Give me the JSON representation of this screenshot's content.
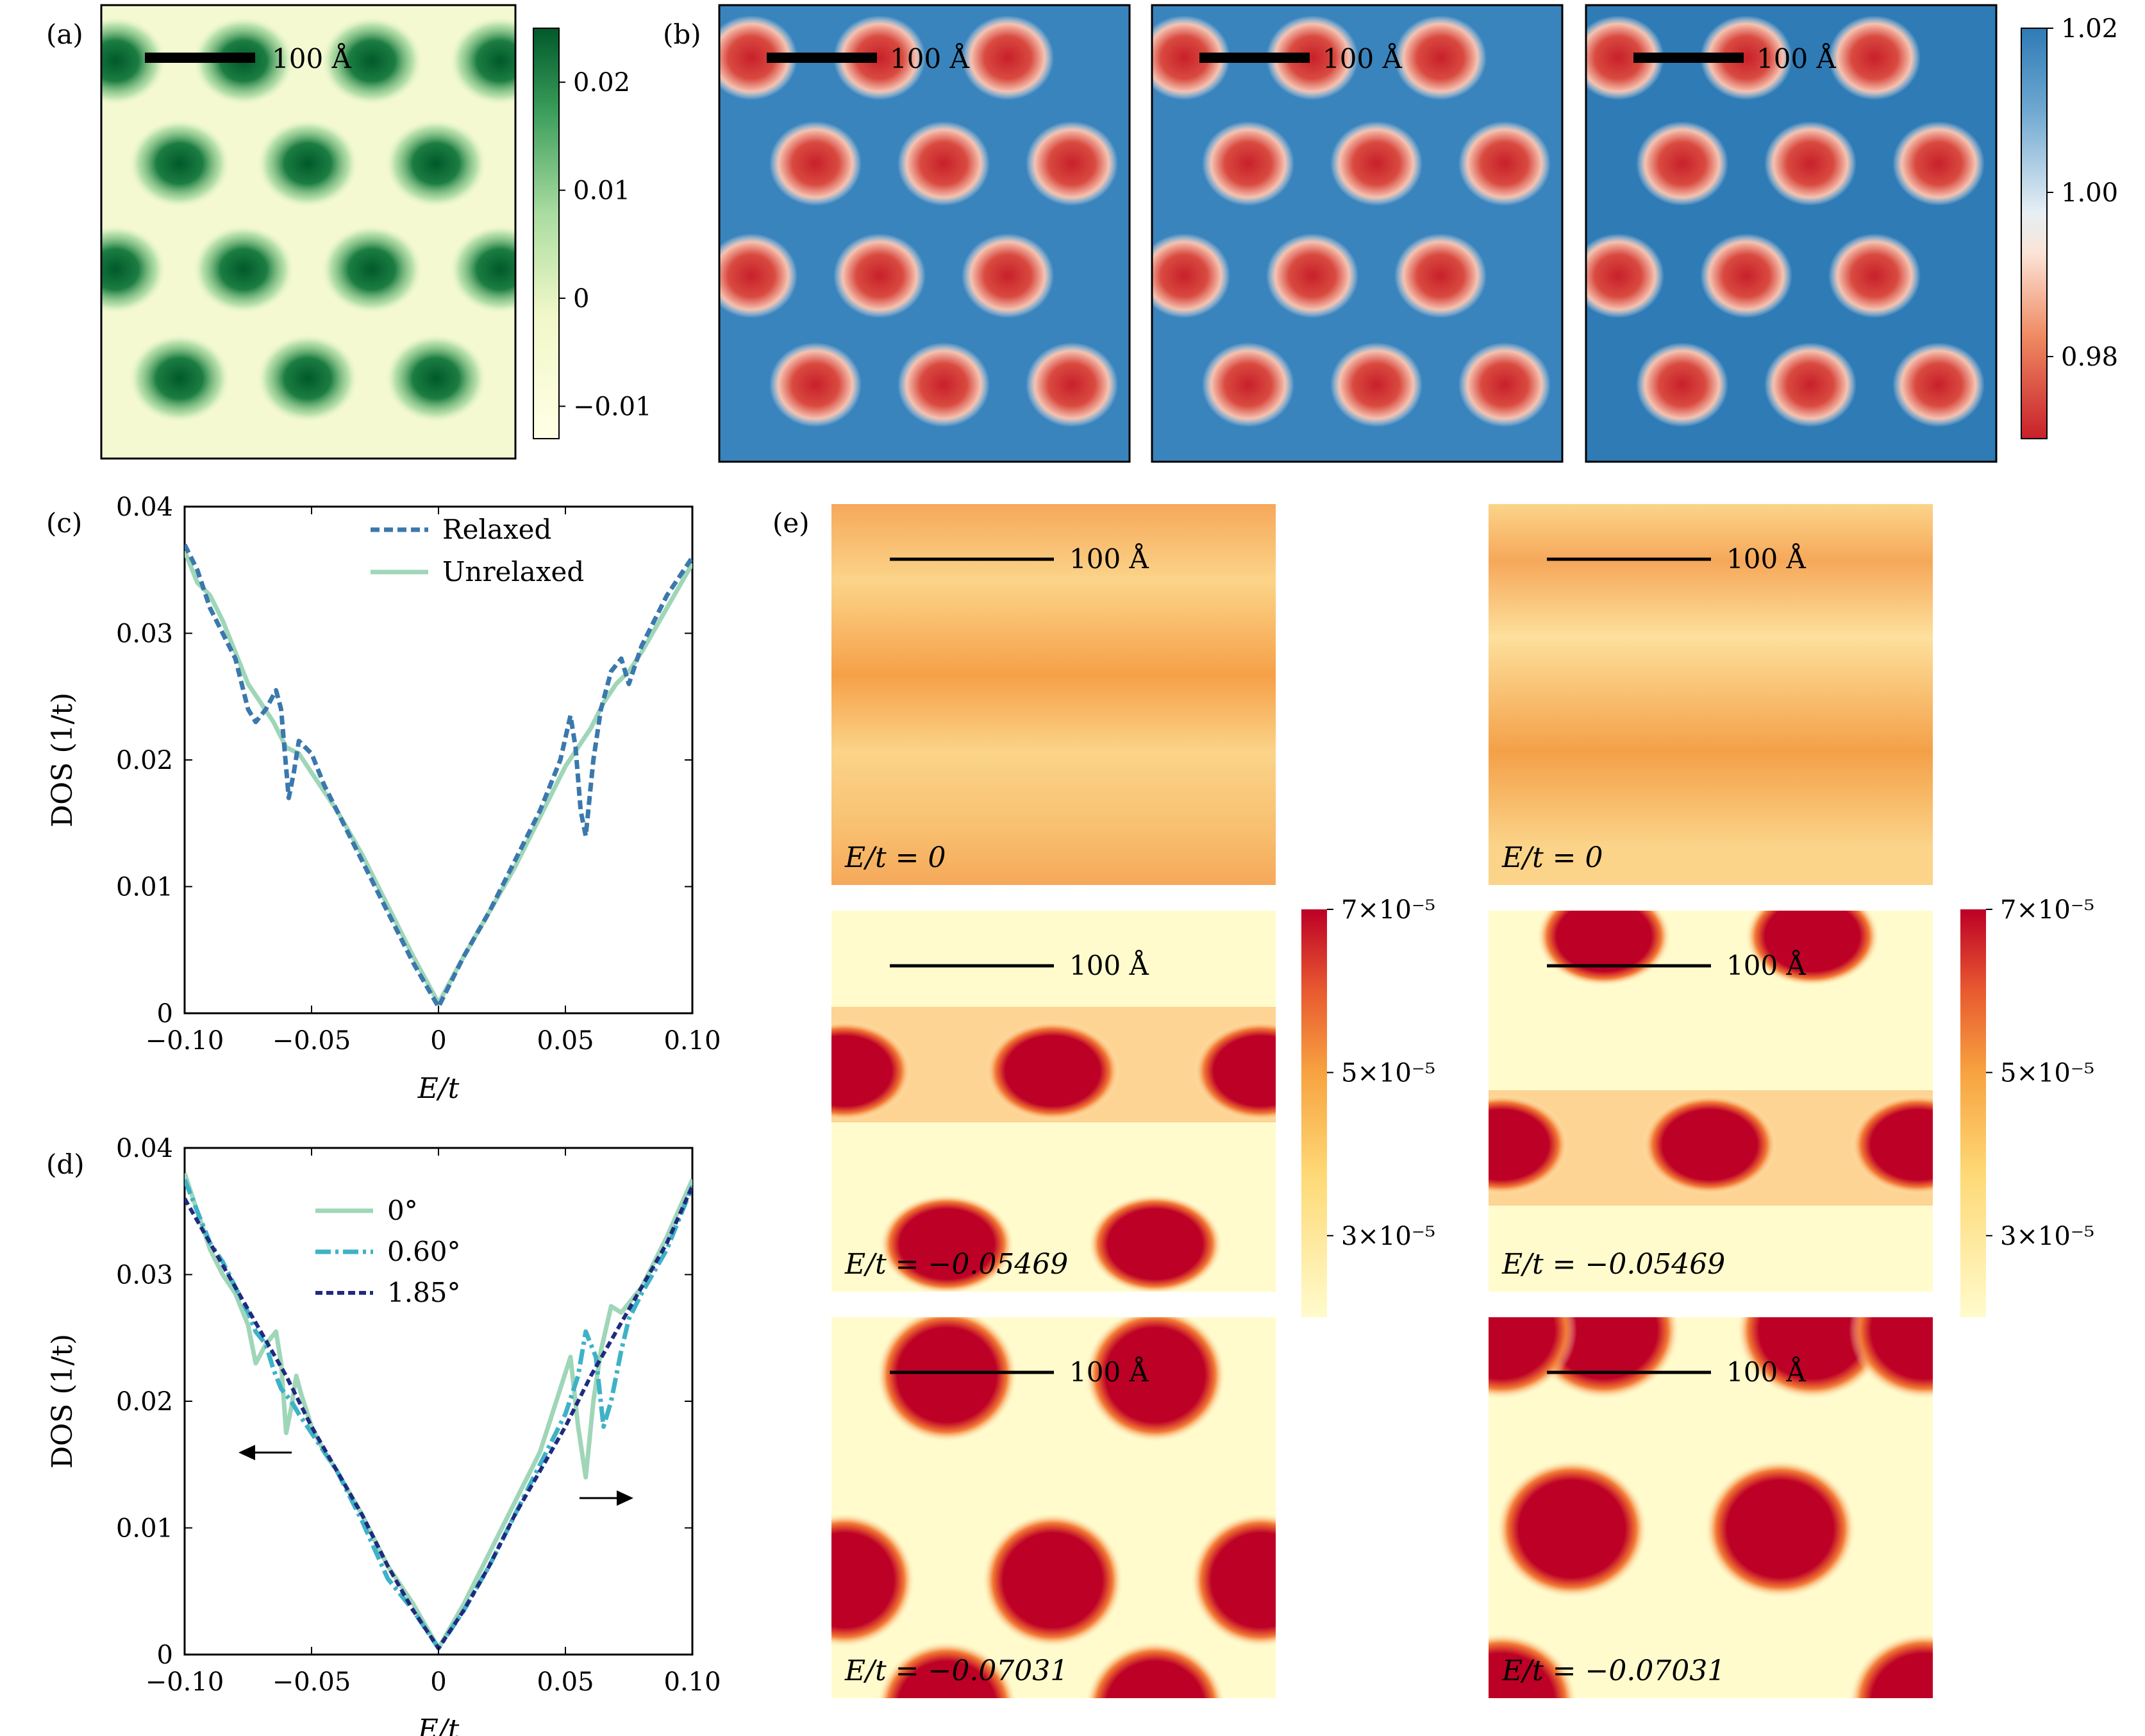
{
  "panel_labels": {
    "a": "(a)",
    "b": "(b)",
    "c": "(c)",
    "d": "(d)",
    "e": "(e)"
  },
  "scalebar_label": "100 Å",
  "colors": {
    "greens_dark": "#00592a",
    "greens_light": "#ffffe5",
    "rdbu_red": "#c8202a",
    "rdbu_white": "#f7f7f7",
    "rdbu_blue": "#2e7bb6",
    "ylorrd_pale": "#fffbcc",
    "ylorrd_orange": "#f7a340",
    "ylorrd_red": "#bd0026",
    "relaxed": "#3a78ad",
    "unrelaxed": "#9fd6b8",
    "angle_0": "#9fd6b8",
    "angle_060": "#3eb2c6",
    "angle_185": "#1f2b80"
  },
  "colorbar_a": {
    "ticks": [
      "0.02",
      "0.01",
      "0",
      "−0.01"
    ],
    "range": [
      -0.013,
      0.025
    ]
  },
  "colorbar_b": {
    "ticks": [
      "1.02",
      "1.00",
      "0.98"
    ],
    "range": [
      0.97,
      1.02
    ]
  },
  "colorbar_e": {
    "ticks": [
      "7×10⁻⁵",
      "5×10⁻⁵",
      "3×10⁻⁵"
    ],
    "range": [
      2e-05,
      7e-05
    ]
  },
  "panel_e_labels": [
    "E/t = 0",
    "E/t = −0.05469",
    "E/t = −0.07031"
  ],
  "chart_data": [
    {
      "panel": "c",
      "type": "line",
      "xlabel": "E/t",
      "ylabel": "DOS (1/t)",
      "xlim": [
        -0.1,
        0.1
      ],
      "ylim": [
        0,
        0.04
      ],
      "xticks": [
        "−0.10",
        "−0.05",
        "0",
        "0.05",
        "0.10"
      ],
      "yticks": [
        "0",
        "0.01",
        "0.02",
        "0.03",
        "0.04"
      ],
      "legend_position": "top-right",
      "series": [
        {
          "name": "Relaxed",
          "style": "dashed",
          "x": [
            -0.1,
            -0.095,
            -0.09,
            -0.085,
            -0.08,
            -0.075,
            -0.072,
            -0.068,
            -0.064,
            -0.062,
            -0.059,
            -0.057,
            -0.055,
            -0.05,
            -0.045,
            -0.04,
            -0.03,
            -0.02,
            -0.01,
            0,
            0.01,
            0.02,
            0.03,
            0.04,
            0.048,
            0.052,
            0.054,
            0.056,
            0.058,
            0.061,
            0.064,
            0.068,
            0.072,
            0.075,
            0.08,
            0.09,
            0.1
          ],
          "y": [
            0.037,
            0.035,
            0.032,
            0.03,
            0.028,
            0.024,
            0.023,
            0.024,
            0.0255,
            0.024,
            0.017,
            0.019,
            0.0215,
            0.0205,
            0.018,
            0.016,
            0.012,
            0.008,
            0.004,
            0.0005,
            0.0045,
            0.008,
            0.012,
            0.016,
            0.02,
            0.0235,
            0.021,
            0.016,
            0.014,
            0.02,
            0.024,
            0.027,
            0.028,
            0.026,
            0.029,
            0.033,
            0.036
          ]
        },
        {
          "name": "Unrelaxed",
          "style": "solid",
          "x": [
            -0.1,
            -0.095,
            -0.09,
            -0.085,
            -0.08,
            -0.075,
            -0.07,
            -0.065,
            -0.06,
            -0.055,
            -0.05,
            -0.04,
            -0.03,
            -0.02,
            -0.01,
            0,
            0.01,
            0.02,
            0.03,
            0.04,
            0.05,
            0.055,
            0.06,
            0.065,
            0.07,
            0.075,
            0.08,
            0.09,
            0.1
          ],
          "y": [
            0.0365,
            0.034,
            0.033,
            0.031,
            0.0285,
            0.026,
            0.0245,
            0.023,
            0.021,
            0.0205,
            0.019,
            0.016,
            0.0125,
            0.0085,
            0.0045,
            0.0008,
            0.0045,
            0.008,
            0.0115,
            0.0155,
            0.0195,
            0.021,
            0.0225,
            0.0245,
            0.026,
            0.027,
            0.0285,
            0.032,
            0.0355
          ]
        }
      ]
    },
    {
      "panel": "d",
      "type": "line",
      "xlabel": "E/t",
      "ylabel": "DOS (1/t)",
      "xlim": [
        -0.1,
        0.1
      ],
      "ylim": [
        0,
        0.04
      ],
      "xticks": [
        "−0.10",
        "−0.05",
        "0",
        "0.05",
        "0.10"
      ],
      "yticks": [
        "0",
        "0.01",
        "0.02",
        "0.03",
        "0.04"
      ],
      "legend_position": "top-center",
      "series": [
        {
          "name": "0°",
          "style": "solid",
          "x": [
            -0.1,
            -0.095,
            -0.09,
            -0.085,
            -0.08,
            -0.075,
            -0.072,
            -0.068,
            -0.064,
            -0.062,
            -0.06,
            -0.058,
            -0.056,
            -0.054,
            -0.05,
            -0.045,
            -0.04,
            -0.03,
            -0.02,
            -0.01,
            0,
            0.01,
            0.02,
            0.03,
            0.04,
            0.048,
            0.052,
            0.055,
            0.058,
            0.061,
            0.064,
            0.068,
            0.072,
            0.076,
            0.08,
            0.09,
            0.1
          ],
          "y": [
            0.038,
            0.035,
            0.032,
            0.03,
            0.0285,
            0.026,
            0.023,
            0.0245,
            0.0255,
            0.023,
            0.0175,
            0.0195,
            0.022,
            0.0205,
            0.018,
            0.016,
            0.0145,
            0.011,
            0.007,
            0.004,
            0.0005,
            0.004,
            0.008,
            0.012,
            0.016,
            0.021,
            0.0235,
            0.018,
            0.014,
            0.02,
            0.024,
            0.0275,
            0.027,
            0.028,
            0.029,
            0.033,
            0.0375
          ]
        },
        {
          "name": "0.60°",
          "style": "dashdot",
          "x": [
            -0.1,
            -0.095,
            -0.09,
            -0.085,
            -0.08,
            -0.075,
            -0.072,
            -0.068,
            -0.065,
            -0.062,
            -0.058,
            -0.055,
            -0.05,
            -0.04,
            -0.03,
            -0.02,
            -0.01,
            0,
            0.01,
            0.02,
            0.03,
            0.04,
            0.05,
            0.055,
            0.058,
            0.062,
            0.065,
            0.068,
            0.072,
            0.075,
            0.08,
            0.09,
            0.1
          ],
          "y": [
            0.0375,
            0.035,
            0.0325,
            0.031,
            0.029,
            0.027,
            0.0255,
            0.0245,
            0.0225,
            0.021,
            0.02,
            0.019,
            0.0175,
            0.0145,
            0.0105,
            0.006,
            0.0035,
            0.0005,
            0.0035,
            0.007,
            0.011,
            0.015,
            0.019,
            0.022,
            0.0255,
            0.0235,
            0.018,
            0.02,
            0.024,
            0.0265,
            0.0285,
            0.032,
            0.037
          ]
        },
        {
          "name": "1.85°",
          "style": "dashed",
          "x": [
            -0.1,
            -0.09,
            -0.08,
            -0.07,
            -0.06,
            -0.05,
            -0.04,
            -0.03,
            -0.02,
            -0.01,
            0,
            0.01,
            0.02,
            0.03,
            0.04,
            0.05,
            0.06,
            0.07,
            0.08,
            0.09,
            0.1
          ],
          "y": [
            0.036,
            0.0325,
            0.029,
            0.0255,
            0.022,
            0.018,
            0.0145,
            0.011,
            0.007,
            0.0035,
            0.0005,
            0.0035,
            0.007,
            0.011,
            0.0145,
            0.018,
            0.022,
            0.0255,
            0.029,
            0.0325,
            0.037
          ]
        }
      ]
    }
  ]
}
